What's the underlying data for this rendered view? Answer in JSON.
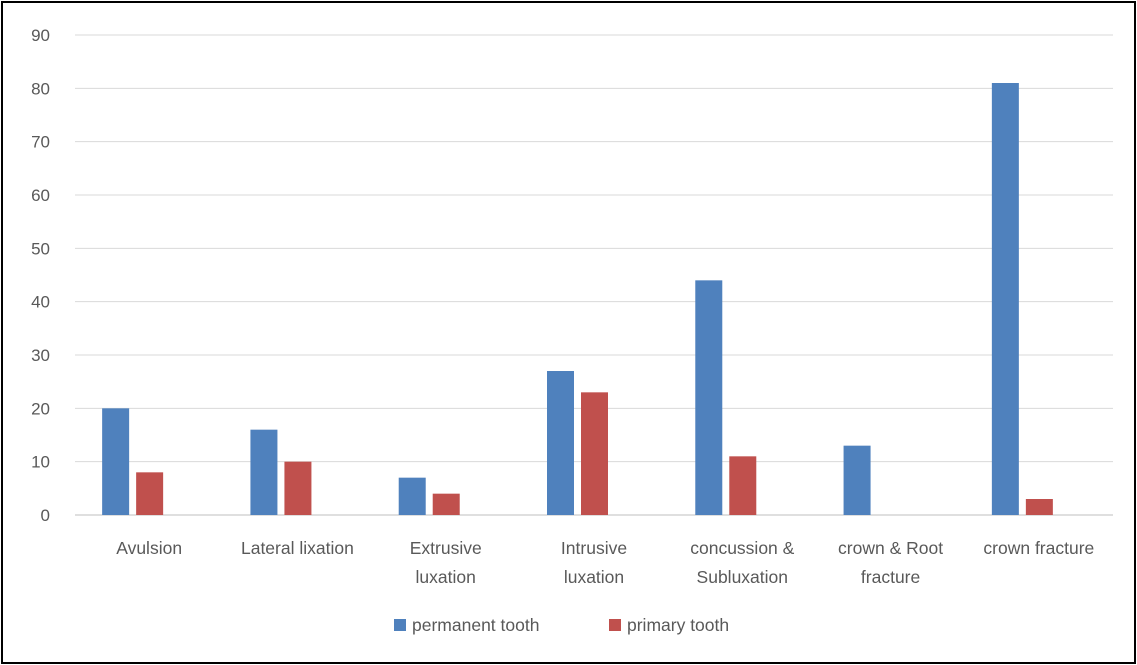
{
  "chart_data": {
    "type": "bar",
    "categories": [
      [
        "Avulsion"
      ],
      [
        "Lateral lixation"
      ],
      [
        "Extrusive",
        "luxation"
      ],
      [
        "Intrusive",
        "luxation"
      ],
      [
        "concussion &",
        "Subluxation"
      ],
      [
        "crown & Root",
        "fracture"
      ],
      [
        "crown fracture"
      ]
    ],
    "series": [
      {
        "name": "permanent tooth",
        "color": "#4F81BD",
        "values": [
          20,
          16,
          7,
          27,
          44,
          13,
          81
        ]
      },
      {
        "name": "primary tooth",
        "color": "#C0504D",
        "values": [
          8,
          10,
          4,
          23,
          11,
          0,
          3
        ]
      }
    ],
    "ylim": [
      0,
      90
    ],
    "yticks": [
      0,
      10,
      20,
      30,
      40,
      50,
      60,
      70,
      80,
      90
    ],
    "grid": true,
    "legend_position": "bottom"
  }
}
